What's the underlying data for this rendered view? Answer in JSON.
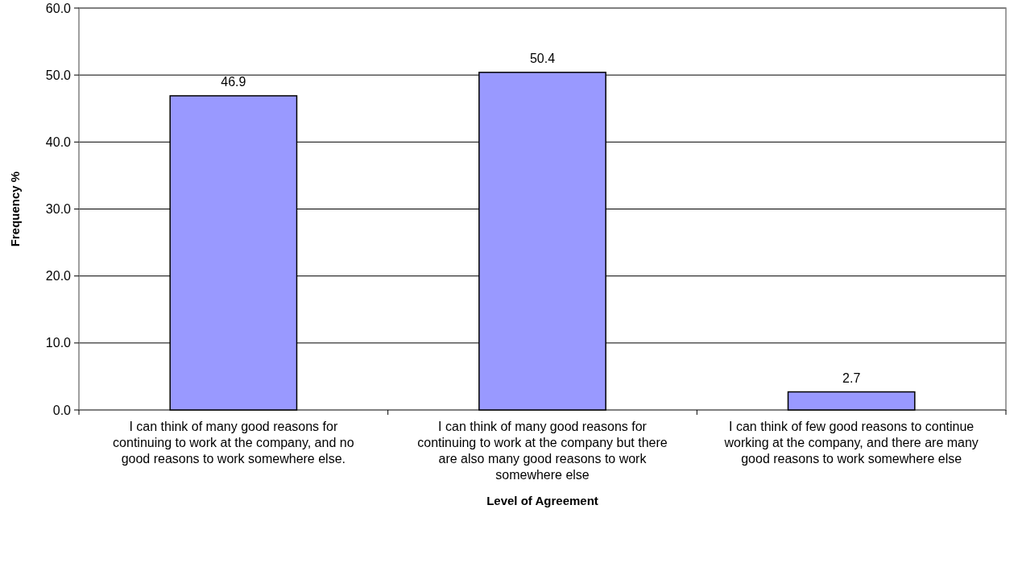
{
  "chart_data": {
    "type": "bar",
    "xlabel": "Level of Agreement",
    "ylabel": "Frequency %",
    "categories": [
      "I can think of many good reasons for continuing to work at the company, and no good reasons to work somewhere else.",
      "I can think of many good reasons for continuing to work at the company but there are also many good reasons to work somewhere else",
      "I can think of few good reasons to continue working at the company, and there are many good reasons to work somewhere else"
    ],
    "values": [
      46.9,
      50.4,
      2.7
    ],
    "color": "#9999ff",
    "data_labels": true,
    "ylim": [
      0,
      60
    ],
    "yticks": [
      {
        "value": 0,
        "label": "0.0"
      },
      {
        "value": 10,
        "label": "10.0"
      },
      {
        "value": 20,
        "label": "20.0"
      },
      {
        "value": 30,
        "label": "30.0"
      },
      {
        "value": 40,
        "label": "40.0"
      },
      {
        "value": 50,
        "label": "50.0"
      },
      {
        "value": 60,
        "label": "60.0"
      }
    ],
    "grid": "y"
  }
}
